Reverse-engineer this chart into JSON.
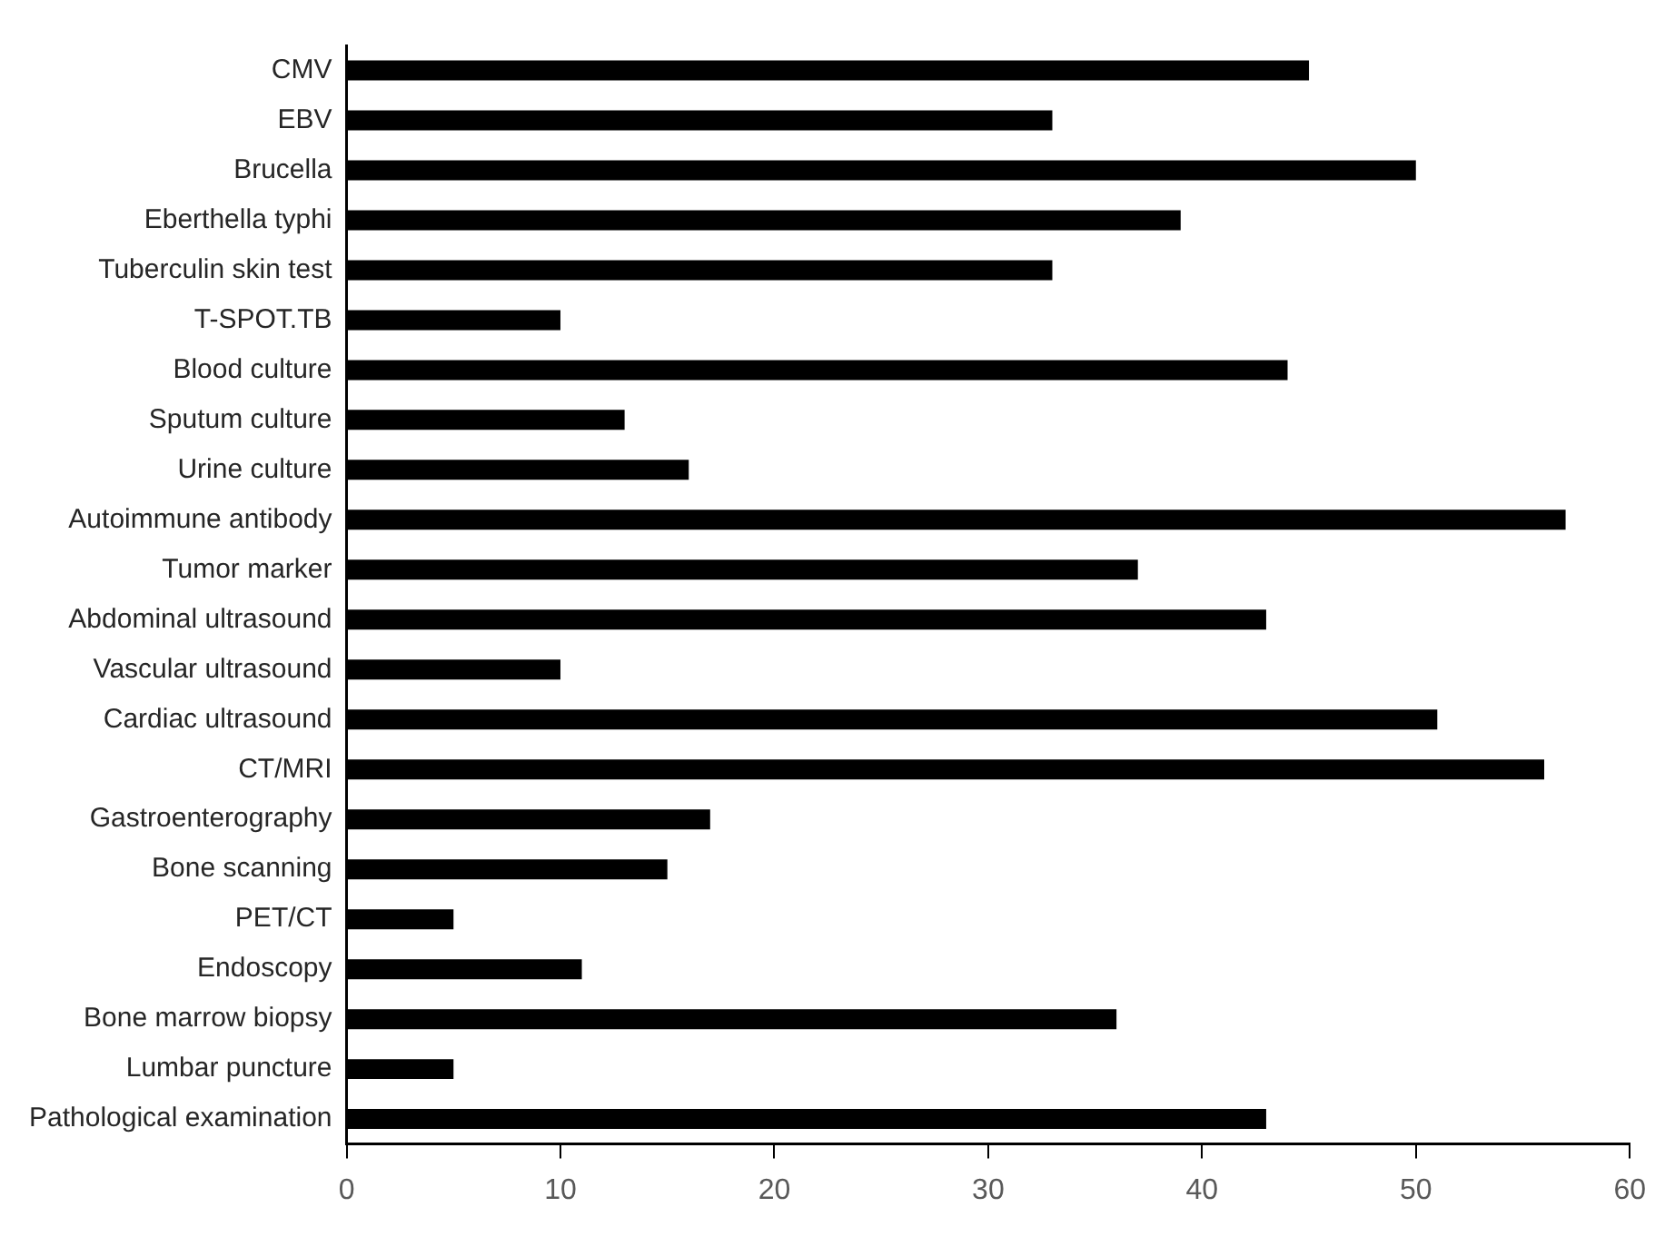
{
  "chart_data": {
    "type": "bar",
    "orientation": "horizontal",
    "categories": [
      "CMV",
      "EBV",
      "Brucella",
      "Eberthella typhi",
      "Tuberculin skin test",
      "T-SPOT.TB",
      "Blood culture",
      "Sputum culture",
      "Urine culture",
      "Autoimmune antibody",
      "Tumor marker",
      "Abdominal ultrasound",
      "Vascular ultrasound",
      "Cardiac ultrasound",
      "CT/MRI",
      "Gastroenterography",
      "Bone scanning",
      "PET/CT",
      "Endoscopy",
      "Bone marrow biopsy",
      "Lumbar puncture",
      "Pathological examination"
    ],
    "values": [
      45,
      33,
      50,
      39,
      33,
      10,
      44,
      13,
      16,
      57,
      37,
      43,
      10,
      51,
      56,
      17,
      15,
      5,
      11,
      36,
      5,
      43
    ],
    "color": "#000000",
    "xlim": [
      0,
      60
    ],
    "xticks": [
      0,
      10,
      20,
      30,
      40,
      50,
      60
    ],
    "grid": false,
    "legend": false
  }
}
